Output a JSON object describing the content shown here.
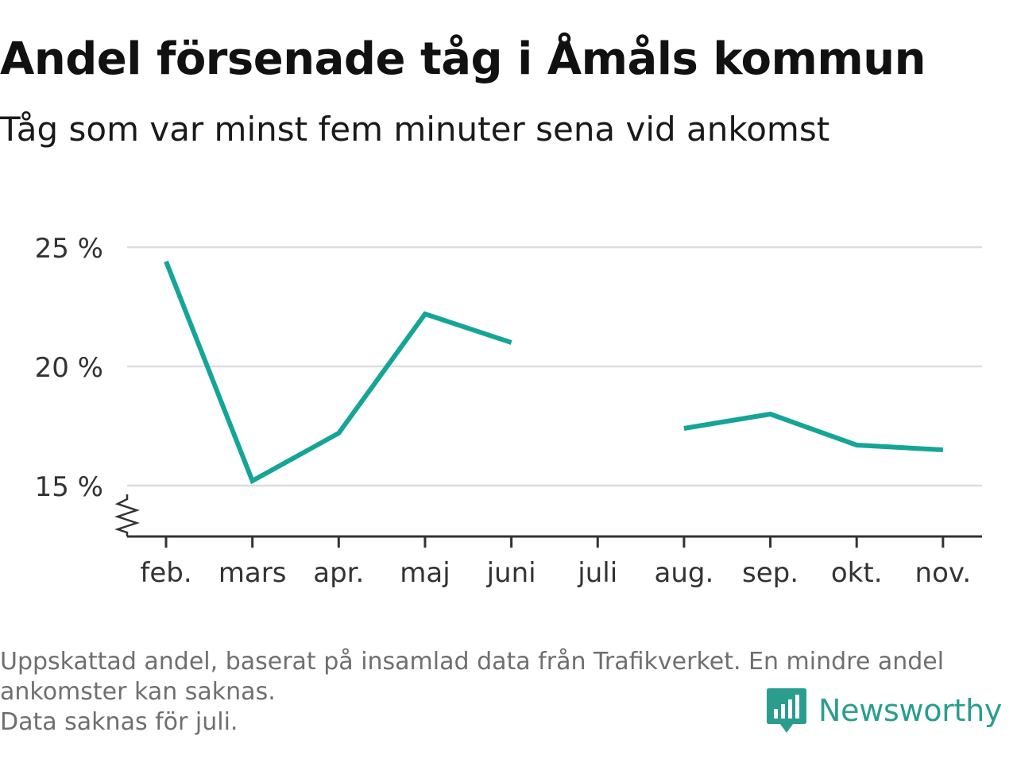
{
  "title": "Andel försenade tåg i Åmåls kommun",
  "subtitle": "Tåg som var minst fem minuter sena vid ankomst",
  "footnote": {
    "line1": "Uppskattad andel, baserat på insamlad data från Trafikverket. En mindre andel",
    "line2": "ankomster kan saknas.",
    "line3": "Data saknas för juli."
  },
  "brand": {
    "name": "Newsworthy",
    "icon": "newsworthy-logo-icon",
    "color": "#2a9d8f"
  },
  "colors": {
    "line": "#15a597",
    "grid": "#dddddd",
    "axis": "#333333"
  },
  "chart_data": {
    "type": "line",
    "title": "",
    "xlabel": "",
    "ylabel": "",
    "categories": [
      "feb.",
      "mars",
      "apr.",
      "maj",
      "juni",
      "juli",
      "aug.",
      "sep.",
      "okt.",
      "nov."
    ],
    "series": [
      {
        "values": [
          24.4,
          15.2,
          17.2,
          22.2,
          21.0,
          null,
          17.4,
          18.0,
          16.7,
          16.5
        ]
      }
    ],
    "yticks": [
      15,
      20,
      25
    ],
    "ytick_labels": [
      "15 %",
      "20 %",
      "25 %"
    ],
    "ylim": [
      15,
      25
    ],
    "y_axis_break": true,
    "grid": true,
    "legend": "none"
  }
}
